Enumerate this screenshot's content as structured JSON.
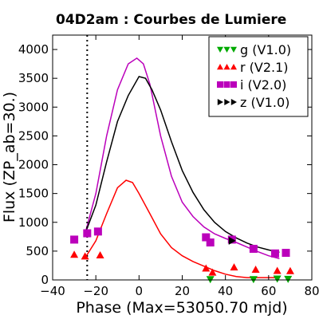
{
  "chart_data": {
    "type": "scatter",
    "title": "04D2am : Courbes de Lumiere",
    "xlabel": "Phase (Max=53050.70 mjd)",
    "ylabel": "Flux (ZP_ab=30.)",
    "xlim": [
      -40,
      80
    ],
    "ylim": [
      0,
      4250
    ],
    "x_ticks": [
      -40,
      -20,
      0,
      20,
      40,
      60,
      80
    ],
    "y_ticks": [
      0,
      500,
      1000,
      1500,
      2000,
      2500,
      3000,
      3500,
      4000
    ],
    "x_tick_labels": [
      "−40",
      "−20",
      "0",
      "20",
      "40",
      "60",
      "80"
    ],
    "y_tick_labels": [
      "0",
      "500",
      "1000",
      "1500",
      "2000",
      "2500",
      "3000",
      "3500",
      "4000"
    ],
    "vline_x": -24,
    "legend_position": "top-right",
    "grid": false,
    "series": [
      {
        "name": "g (V1.0)",
        "marker": "triangle-down",
        "color": "#00aa00",
        "points": [
          [
            33,
            10
          ],
          [
            53,
            10
          ],
          [
            64,
            20
          ],
          [
            69,
            15
          ]
        ],
        "curve": []
      },
      {
        "name": "r (V2.1)",
        "marker": "triangle-up",
        "color": "#ff0000",
        "points": [
          [
            -30,
            440
          ],
          [
            -25,
            410
          ],
          [
            -18,
            430
          ],
          [
            31,
            200
          ],
          [
            34,
            130
          ],
          [
            44,
            220
          ],
          [
            54,
            180
          ],
          [
            64,
            160
          ],
          [
            70,
            155
          ]
        ],
        "curve": [
          [
            -25,
            380
          ],
          [
            -20,
            680
          ],
          [
            -15,
            1150
          ],
          [
            -10,
            1600
          ],
          [
            -6,
            1730
          ],
          [
            -3,
            1690
          ],
          [
            0,
            1500
          ],
          [
            5,
            1150
          ],
          [
            10,
            800
          ],
          [
            15,
            560
          ],
          [
            20,
            420
          ],
          [
            25,
            320
          ],
          [
            30,
            240
          ],
          [
            35,
            160
          ],
          [
            40,
            100
          ],
          [
            45,
            60
          ],
          [
            50,
            40
          ],
          [
            55,
            40
          ],
          [
            60,
            40
          ],
          [
            65,
            40
          ]
        ]
      },
      {
        "name": "i (V2.0)",
        "marker": "square",
        "color": "#bb00bb",
        "points": [
          [
            -30,
            700
          ],
          [
            -24,
            810
          ],
          [
            -19,
            840
          ],
          [
            31,
            740
          ],
          [
            33,
            650
          ],
          [
            43,
            700
          ],
          [
            53,
            540
          ],
          [
            63,
            460
          ],
          [
            68,
            470
          ]
        ],
        "curve": [
          [
            -25,
            800
          ],
          [
            -20,
            1500
          ],
          [
            -15,
            2500
          ],
          [
            -10,
            3300
          ],
          [
            -5,
            3750
          ],
          [
            -1,
            3850
          ],
          [
            2,
            3750
          ],
          [
            5,
            3400
          ],
          [
            10,
            2500
          ],
          [
            15,
            1800
          ],
          [
            20,
            1350
          ],
          [
            25,
            1100
          ],
          [
            30,
            920
          ],
          [
            35,
            800
          ],
          [
            40,
            720
          ],
          [
            45,
            650
          ],
          [
            50,
            570
          ],
          [
            55,
            490
          ],
          [
            60,
            420
          ],
          [
            65,
            370
          ]
        ]
      },
      {
        "name": "z (V1.0)",
        "marker": "triangle-right",
        "color": "#000000",
        "points": [
          [
            43,
            680
          ]
        ],
        "curve": [
          [
            -25,
            800
          ],
          [
            -20,
            1300
          ],
          [
            -15,
            2050
          ],
          [
            -10,
            2750
          ],
          [
            -5,
            3200
          ],
          [
            0,
            3530
          ],
          [
            3,
            3500
          ],
          [
            6,
            3300
          ],
          [
            10,
            2950
          ],
          [
            15,
            2400
          ],
          [
            20,
            1900
          ],
          [
            25,
            1520
          ],
          [
            30,
            1220
          ],
          [
            35,
            1000
          ],
          [
            40,
            840
          ],
          [
            45,
            730
          ],
          [
            50,
            640
          ],
          [
            55,
            570
          ],
          [
            60,
            520
          ],
          [
            65,
            480
          ]
        ]
      }
    ]
  }
}
